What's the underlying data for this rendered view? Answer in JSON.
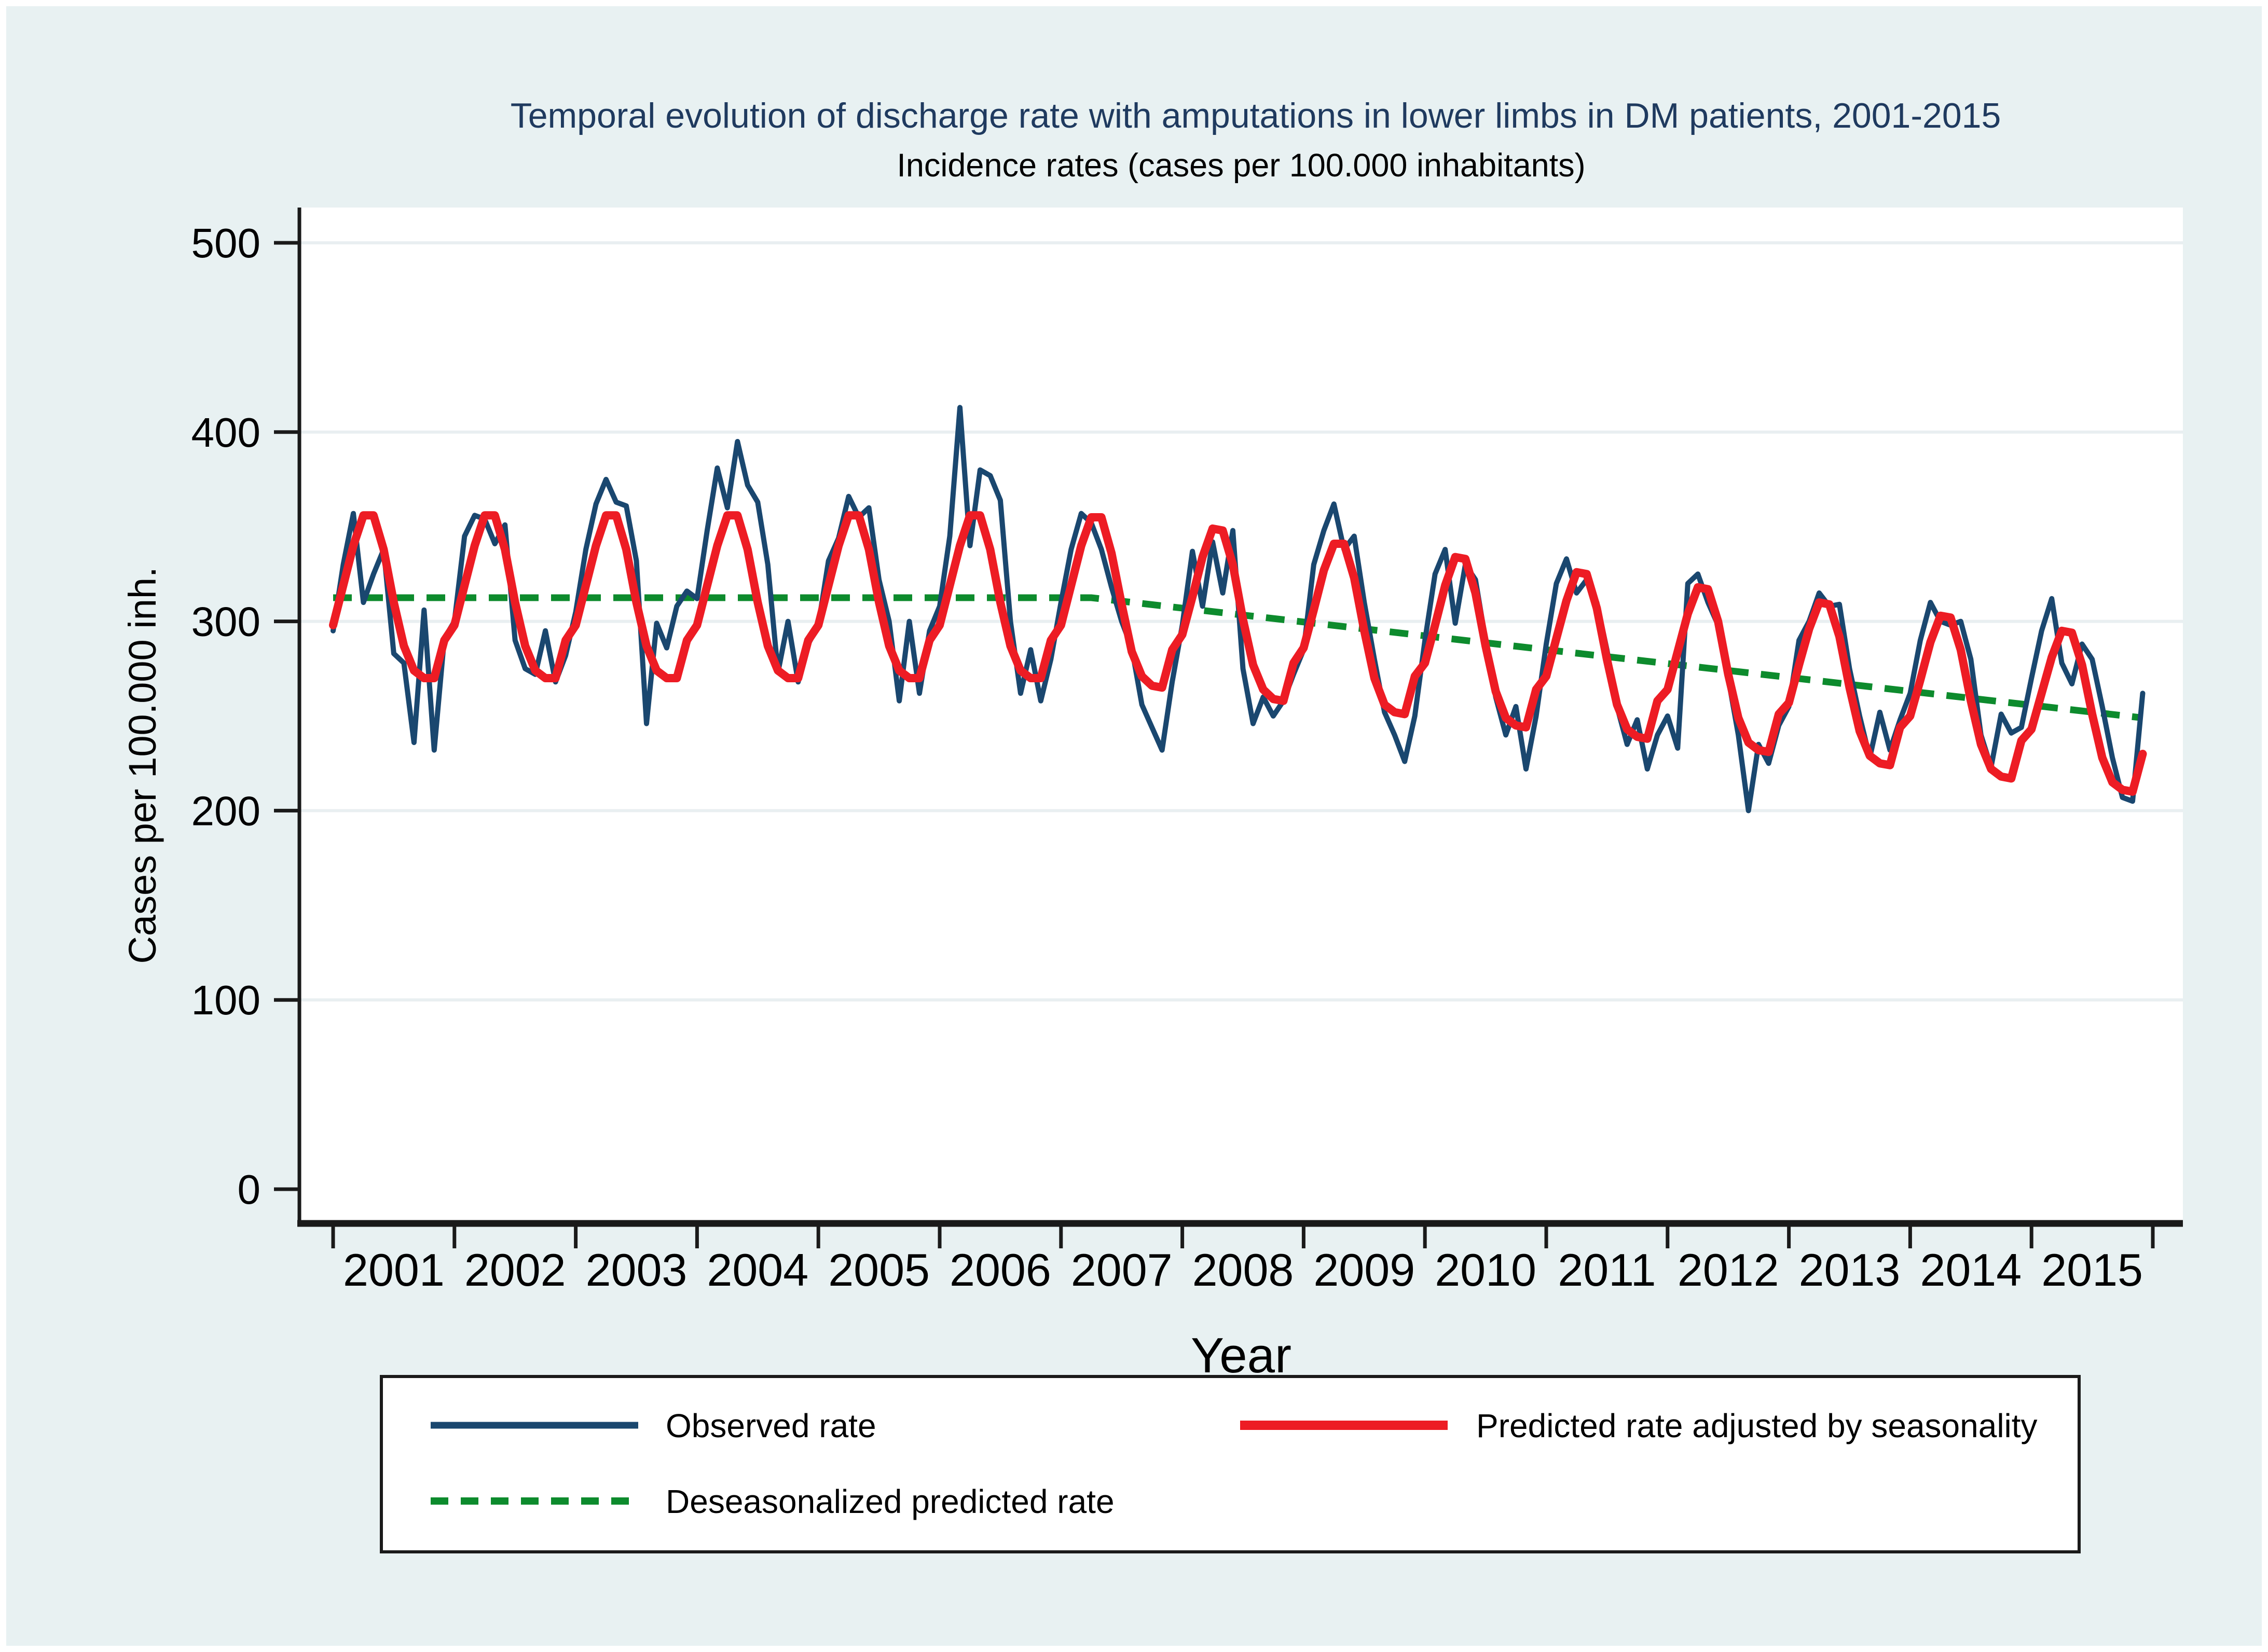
{
  "title": "Temporal evolution of discharge rate with amputations in lower limbs in DM patients, 2001-2015",
  "subtitle": "Incidence rates (cases per 100.000 inhabitants)",
  "colors": {
    "background": "#e8f1f2",
    "plot_background": "#ffffff",
    "gridline": "#e9eff1",
    "axis": "#1a1a1a",
    "title_text": "#1f3a5f",
    "body_text": "#000000",
    "observed": "#1a476f",
    "predicted": "#ed1c24",
    "deseasonalized": "#0d8b2d"
  },
  "axes": {
    "y": {
      "title": "Cases per 100.000 inh.",
      "ticks": [
        0,
        100,
        200,
        300,
        400,
        500
      ],
      "range": [
        0,
        500
      ]
    },
    "x": {
      "title": "Year",
      "tick_years": [
        "2001",
        "2002",
        "2003",
        "2004",
        "2005",
        "2006",
        "2007",
        "2008",
        "2009",
        "2010",
        "2011",
        "2012",
        "2013",
        "2014",
        "2015"
      ]
    }
  },
  "legend": {
    "items": [
      {
        "label": "Observed rate",
        "color": "#1a476f",
        "style": "solid"
      },
      {
        "label": "Predicted rate adjusted by seasonality",
        "color": "#ed1c24",
        "style": "solid"
      },
      {
        "label": "Deseasonalized predicted rate",
        "color": "#0d8b2d",
        "style": "dashed"
      }
    ]
  },
  "chart_data": {
    "type": "line",
    "title": "Temporal evolution of discharge rate with amputations in lower limbs in DM patients, 2001-2015",
    "subtitle": "Incidence rates (cases per 100.000 inhabitants)",
    "xlabel": "Year",
    "ylabel": "Cases per 100.000 inh.",
    "ylim": [
      0,
      500
    ],
    "grid": "horizontal",
    "legend_position": "bottom-box",
    "x_unit": "months since January 2001",
    "x_start": "2001-01",
    "x_end": "2015-12",
    "frequency": "monthly",
    "series": [
      {
        "name": "Observed rate",
        "color": "#1a476f",
        "style": "solid",
        "values": [
          295,
          330,
          357,
          310,
          325,
          338,
          283,
          278,
          236,
          306,
          232,
          291,
          300,
          345,
          356,
          354,
          341,
          351,
          290,
          275,
          272,
          295,
          268,
          282,
          305,
          338,
          362,
          375,
          363,
          361,
          332,
          246,
          299,
          286,
          308,
          316,
          312,
          348,
          381,
          360,
          395,
          372,
          363,
          330,
          273,
          300,
          268,
          288,
          298,
          332,
          344,
          366,
          355,
          360,
          322,
          300,
          258,
          300,
          262,
          295,
          308,
          345,
          413,
          340,
          380,
          377,
          364,
          300,
          262,
          285,
          258,
          280,
          310,
          338,
          357,
          352,
          338,
          318,
          300,
          286,
          256,
          244,
          232,
          268,
          298,
          337,
          308,
          342,
          315,
          348,
          275,
          246,
          260,
          250,
          258,
          272,
          285,
          330,
          348,
          362,
          338,
          345,
          310,
          280,
          252,
          240,
          226,
          250,
          290,
          325,
          338,
          299,
          330,
          322,
          290,
          260,
          240,
          255,
          222,
          250,
          288,
          320,
          333,
          315,
          322,
          310,
          285,
          255,
          235,
          248,
          222,
          240,
          250,
          233,
          320,
          325,
          310,
          298,
          270,
          240,
          200,
          235,
          225,
          245,
          255,
          290,
          300,
          315,
          308,
          309,
          275,
          250,
          228,
          252,
          232,
          248,
          262,
          290,
          310,
          300,
          298,
          300,
          280,
          240,
          223,
          251,
          241,
          244,
          270,
          295,
          312,
          278,
          267,
          288,
          280,
          255,
          228,
          207,
          205,
          262
        ]
      },
      {
        "name": "Predicted rate adjusted by seasonality",
        "color": "#ed1c24",
        "style": "solid",
        "values": [
          298,
          319,
          340,
          356,
          356,
          338,
          310,
          287,
          274,
          270,
          270,
          290,
          298,
          319,
          340,
          356,
          356,
          338,
          310,
          287,
          274,
          270,
          270,
          290,
          298,
          319,
          340,
          356,
          356,
          338,
          310,
          287,
          274,
          270,
          270,
          290,
          298,
          319,
          340,
          356,
          356,
          338,
          310,
          287,
          274,
          270,
          270,
          290,
          298,
          319,
          340,
          356,
          356,
          338,
          310,
          287,
          274,
          270,
          270,
          290,
          298,
          319,
          340,
          356,
          356,
          338,
          310,
          287,
          274,
          270,
          270,
          290,
          298,
          319,
          340,
          355,
          355,
          336,
          309,
          284,
          271,
          266,
          265,
          285,
          293,
          313,
          334,
          349,
          348,
          330,
          301,
          277,
          264,
          259,
          258,
          278,
          286,
          306,
          327,
          341,
          341,
          323,
          295,
          270,
          256,
          252,
          251,
          271,
          278,
          298,
          319,
          334,
          333,
          315,
          287,
          263,
          249,
          245,
          244,
          264,
          271,
          291,
          311,
          326,
          325,
          307,
          280,
          256,
          243,
          239,
          238,
          258,
          264,
          284,
          304,
          318,
          317,
          300,
          272,
          249,
          236,
          232,
          231,
          251,
          257,
          277,
          296,
          310,
          309,
          292,
          265,
          242,
          229,
          225,
          224,
          244,
          250,
          269,
          289,
          303,
          302,
          285,
          258,
          235,
          222,
          218,
          217,
          237,
          243,
          262,
          281,
          295,
          294,
          277,
          251,
          228,
          215,
          211,
          210,
          230
        ]
      },
      {
        "name": "Deseasonalized predicted rate",
        "color": "#0d8b2d",
        "style": "dashed",
        "breakpoints": [
          [
            0,
            312.5
          ],
          [
            75,
            312.5
          ],
          [
            179,
            249
          ]
        ]
      }
    ]
  }
}
